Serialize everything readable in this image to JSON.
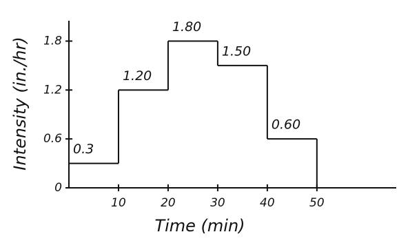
{
  "chart_data": {
    "type": "histogram",
    "xlabel": "Time (min)",
    "ylabel": "Intensity (in./hr)",
    "bins": [
      0,
      10,
      20,
      30,
      40,
      50
    ],
    "values": [
      0.3,
      1.2,
      1.8,
      1.5,
      0.6
    ],
    "value_labels": [
      "0.3",
      "1.20",
      "1.80",
      "1.50",
      "0.60"
    ],
    "xlim": [
      0,
      66
    ],
    "ylim": [
      0,
      2.05
    ],
    "xticks": [
      10,
      20,
      30,
      40,
      50
    ],
    "yticks": [
      0,
      0.6,
      1.2,
      1.8
    ],
    "color": "#111111"
  }
}
